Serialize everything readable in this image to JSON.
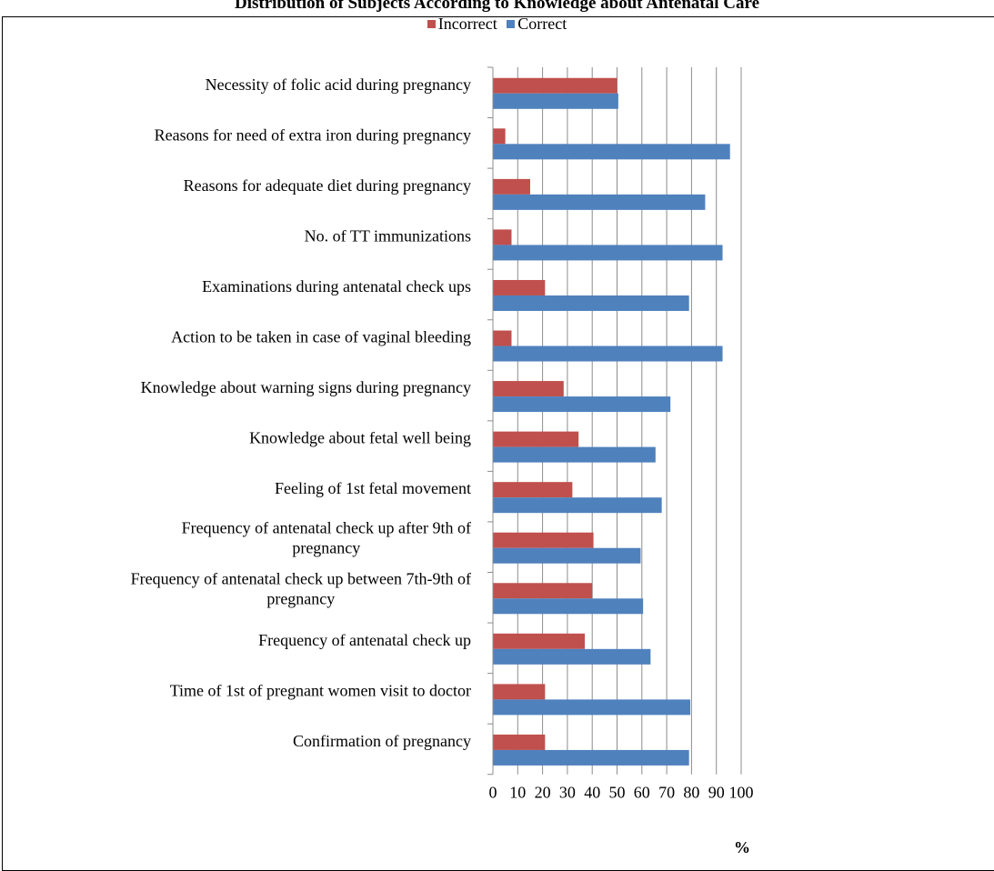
{
  "chart_data": {
    "type": "bar",
    "orientation": "horizontal",
    "title": "Distribution of Subjects According to Knowledge about Antenatal Care",
    "xlabel": "%",
    "ylabel": "",
    "xlim": [
      0,
      100
    ],
    "xticks": [
      "0",
      "10",
      "20",
      "30",
      "40",
      "50",
      "60",
      "70",
      "80",
      "90",
      "100"
    ],
    "grid": "vertical",
    "legend": "top",
    "colors": {
      "Incorrect": "#c0504d",
      "Correct": "#4f81bd"
    },
    "categories": [
      [
        "Necessity  of folic acid during pregnancy"
      ],
      [
        "Reasons for need of extra iron during pregnancy"
      ],
      [
        "Reasons for adequate diet during pregnancy"
      ],
      [
        "No. of TT immunizations"
      ],
      [
        "Examinations during antenatal  check ups"
      ],
      [
        "Action to be taken in case of vaginal  bleeding"
      ],
      [
        "Knowledge about warning signs during pregnancy"
      ],
      [
        "Knowledge about fetal well being"
      ],
      [
        "Feeling of 1st fetal movement"
      ],
      [
        "Frequency of antenatal check up after 9th of",
        "pregnancy"
      ],
      [
        "Frequency of antenatal check up between 7th-9th of",
        "pregnancy"
      ],
      [
        "Frequency of antenatal check  up"
      ],
      [
        "Time of 1st of pregnant women visit  to doctor"
      ],
      [
        "Confirmation of pregnancy"
      ]
    ],
    "series": [
      {
        "name": "Incorrect",
        "values": [
          50,
          5,
          15,
          7.5,
          21,
          7.5,
          28.5,
          34.5,
          32,
          40.5,
          40,
          37,
          21,
          21
        ]
      },
      {
        "name": "Correct",
        "values": [
          50.5,
          95.5,
          85.5,
          92.5,
          79,
          92.5,
          71.5,
          65.5,
          68,
          59.5,
          60.5,
          63.5,
          79.5,
          79
        ]
      }
    ]
  }
}
